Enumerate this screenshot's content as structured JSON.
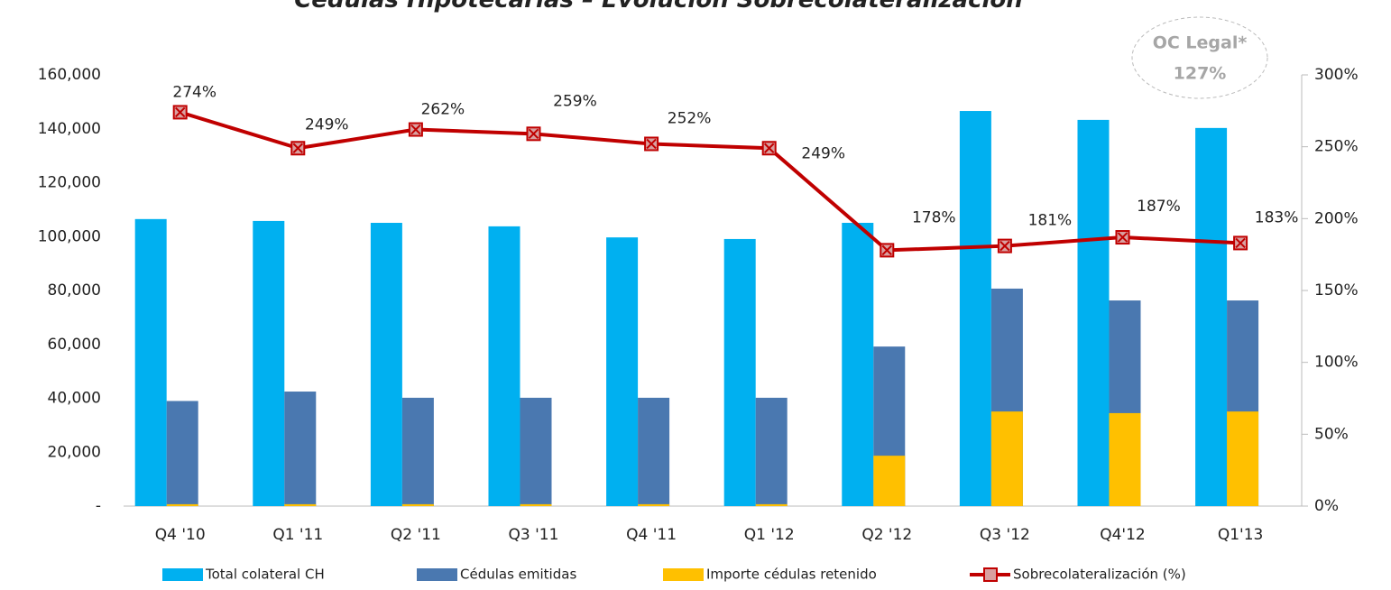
{
  "chart_data": {
    "type": "bar",
    "title": "Cédulas Hipotecarias – Evolución  Sobrecolateralización",
    "annotation": {
      "lines": [
        "OC Legal*",
        "127%"
      ]
    },
    "categories": [
      "Q4 '10",
      "Q1 '11",
      "Q2 '11",
      "Q3 '11",
      "Q4 '11",
      "Q1 '12",
      "Q2  '12",
      "Q3 '12",
      "Q4'12",
      "Q1'13"
    ],
    "series": [
      {
        "name": "Total colateral CH",
        "color": "#00b0f0",
        "values": [
          106500,
          105800,
          105100,
          103800,
          99700,
          99100,
          105100,
          146600,
          143300,
          140300
        ]
      },
      {
        "name": "Cédulas emitidas",
        "color": "#4a78b0",
        "values": [
          39000,
          42500,
          40200,
          40200,
          40200,
          40200,
          59200,
          80700,
          76300,
          76300
        ]
      },
      {
        "name": "Importe cédulas  retenido",
        "color": "#ffc000",
        "values": [
          700,
          700,
          700,
          700,
          700,
          700,
          18700,
          35100,
          34500,
          35100
        ]
      },
      {
        "name": "Sobrecolateralización (%)",
        "color": "#c00000",
        "type": "line",
        "axis": "y2",
        "values": [
          274,
          249,
          262,
          259,
          252,
          249,
          178,
          181,
          187,
          183
        ],
        "value_labels": [
          "274%",
          "249%",
          "262%",
          "259%",
          "252%",
          "249%",
          "178%",
          "181%",
          "187%",
          "183%"
        ]
      }
    ],
    "ylim": [
      0,
      160000
    ],
    "yticks": [
      {
        "value": 0,
        "label": "-"
      },
      {
        "value": 20000,
        "label": "20,000"
      },
      {
        "value": 40000,
        "label": "40,000"
      },
      {
        "value": 60000,
        "label": "60,000"
      },
      {
        "value": 80000,
        "label": "80,000"
      },
      {
        "value": 100000,
        "label": "100,000"
      },
      {
        "value": 120000,
        "label": "120,000"
      },
      {
        "value": 140000,
        "label": "140,000"
      },
      {
        "value": 160000,
        "label": "160,000"
      }
    ],
    "y2lim": [
      0,
      300
    ],
    "y2ticks": [
      {
        "value": 0,
        "label": "0%"
      },
      {
        "value": 50,
        "label": "50%"
      },
      {
        "value": 100,
        "label": "100%"
      },
      {
        "value": 150,
        "label": "150%"
      },
      {
        "value": 200,
        "label": "200%"
      },
      {
        "value": 250,
        "label": "250%"
      },
      {
        "value": 300,
        "label": "300%"
      }
    ],
    "grid": false,
    "legend": "bottom"
  }
}
